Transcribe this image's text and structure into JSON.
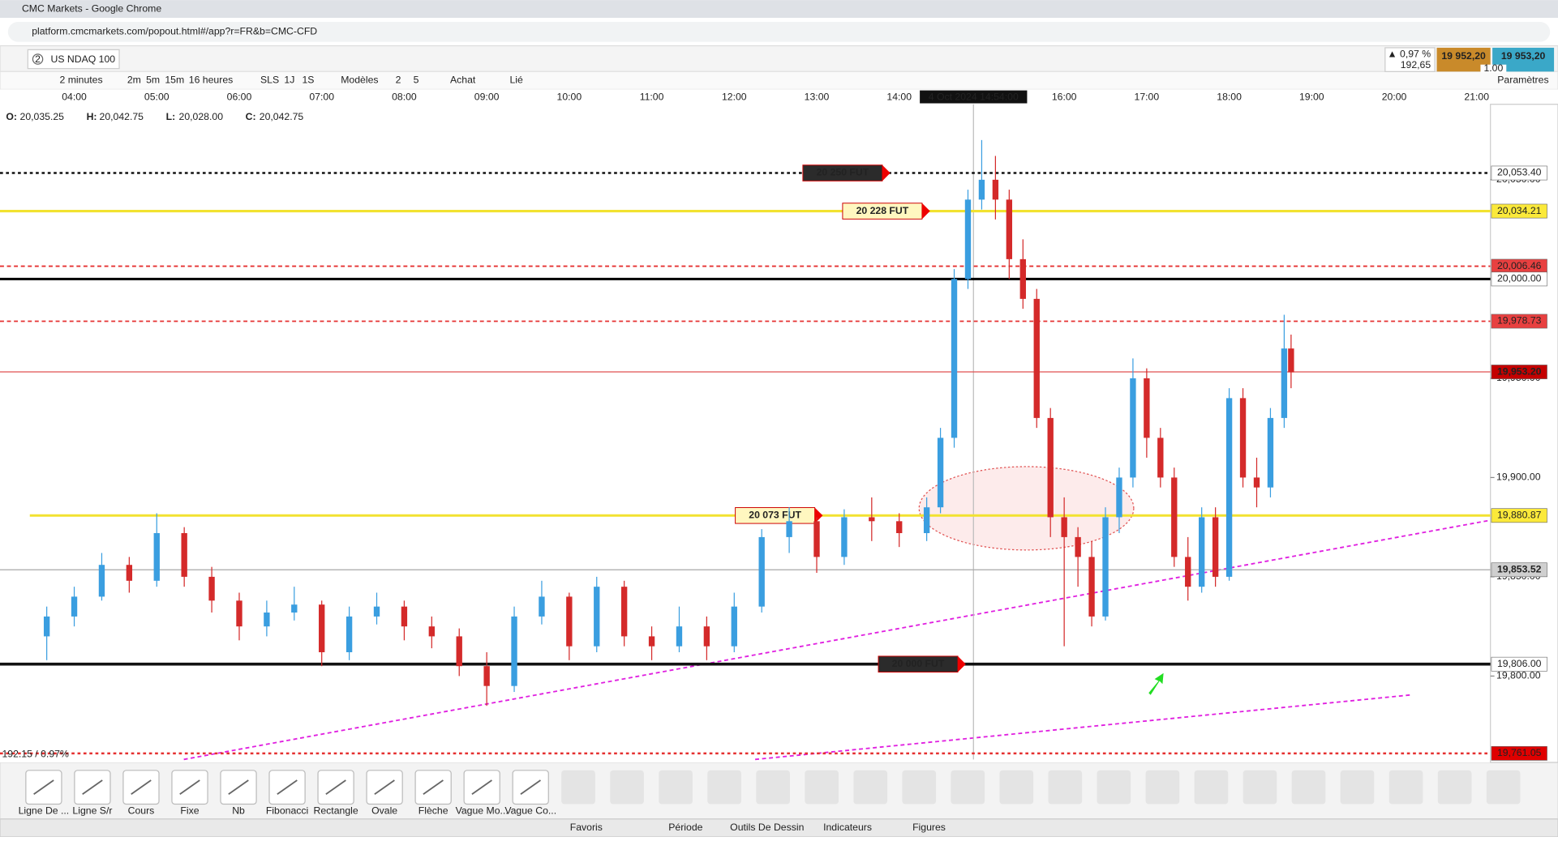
{
  "browser": {
    "title": "CMC Markets - Google Chrome",
    "url": "platform.cmcmarkets.com/popout.html#/app?r=FR&b=CMC-CFD"
  },
  "instrument": {
    "tab_number": "2",
    "tab": "US NDAQ 100",
    "change_pct": "▲ 0,97 %",
    "change": "192,65",
    "sell": "19 952,20",
    "buy": "19 953,20",
    "size": "1.00"
  },
  "toolbar": {
    "interval": "2 minutes",
    "quick_intervals": [
      "2m",
      "5m",
      "15m"
    ],
    "range": "16 heures",
    "views": [
      "SLS",
      "1J",
      "1S"
    ],
    "templates": "Modèles",
    "numbers": [
      "2",
      "5"
    ],
    "buy": "Achat",
    "link": "Lié",
    "settings": "Paramètres"
  },
  "ohlc": {
    "labels": [
      "O:",
      "H:",
      "L:",
      "C:"
    ],
    "values": [
      "20,035.25",
      "20,042.75",
      "20,028.00",
      "20,042.75"
    ]
  },
  "crosshair": {
    "label": "4 Oct 2024 14:54:00",
    "x": "14:54"
  },
  "chart_data": {
    "type": "candlestick",
    "x": [
      "03:40",
      "04:00",
      "04:20",
      "04:40",
      "05:00",
      "05:20",
      "05:40",
      "06:00",
      "06:20",
      "06:40",
      "07:00",
      "07:20",
      "07:40",
      "08:00",
      "08:20",
      "08:40",
      "09:00",
      "09:20",
      "09:40",
      "10:00",
      "10:20",
      "10:40",
      "11:00",
      "11:20",
      "11:40",
      "12:00",
      "12:20",
      "12:40",
      "13:00",
      "13:20",
      "13:40",
      "14:00",
      "14:20",
      "14:30",
      "14:40",
      "14:50",
      "15:00",
      "15:10",
      "15:20",
      "15:30",
      "15:40",
      "15:50",
      "16:00",
      "16:10",
      "16:20",
      "16:30",
      "16:40",
      "16:50",
      "17:00",
      "17:10",
      "17:20",
      "17:30",
      "17:40",
      "17:50",
      "18:00",
      "18:10",
      "18:20",
      "18:30",
      "18:40",
      "18:45"
    ],
    "open": [
      19820,
      19830,
      19840,
      19856,
      19848,
      19872,
      19850,
      19838,
      19825,
      19832,
      19836,
      19812,
      19830,
      19835,
      19825,
      19820,
      19805,
      19795,
      19830,
      19840,
      19815,
      19845,
      19820,
      19815,
      19825,
      19815,
      19835,
      19870,
      19878,
      19860,
      19880,
      19878,
      19872,
      19885,
      19920,
      20000,
      20040,
      20050,
      20040,
      20010,
      19990,
      19930,
      19880,
      19870,
      19860,
      19830,
      19880,
      19900,
      19950,
      19920,
      19900,
      19860,
      19845,
      19880,
      19850,
      19940,
      19900,
      19895,
      19930,
      19965
    ],
    "high": [
      19835,
      19845,
      19862,
      19860,
      19882,
      19875,
      19855,
      19842,
      19838,
      19845,
      19838,
      19835,
      19842,
      19838,
      19830,
      19824,
      19812,
      19835,
      19848,
      19842,
      19850,
      19848,
      19825,
      19835,
      19830,
      19842,
      19874,
      19885,
      19880,
      19884,
      19890,
      19882,
      19890,
      19925,
      20005,
      20045,
      20070,
      20062,
      20045,
      20020,
      19995,
      19935,
      19890,
      19875,
      19868,
      19885,
      19905,
      19960,
      19955,
      19925,
      19905,
      19870,
      19885,
      19885,
      19945,
      19945,
      19910,
      19935,
      19982,
      19972
    ],
    "low": [
      19808,
      19825,
      19838,
      19842,
      19845,
      19845,
      19832,
      19818,
      19820,
      19828,
      19805,
      19808,
      19826,
      19818,
      19814,
      19800,
      19785,
      19792,
      19826,
      19808,
      19812,
      19815,
      19808,
      19812,
      19808,
      19812,
      19832,
      19862,
      19852,
      19856,
      19868,
      19865,
      19868,
      19882,
      19915,
      19995,
      20035,
      20030,
      20000,
      19985,
      19925,
      19870,
      19815,
      19845,
      19825,
      19828,
      19872,
      19895,
      19910,
      19895,
      19855,
      19838,
      19842,
      19845,
      19848,
      19895,
      19885,
      19890,
      19925,
      19945
    ],
    "close": [
      19830,
      19840,
      19856,
      19848,
      19872,
      19850,
      19838,
      19825,
      19832,
      19836,
      19812,
      19830,
      19835,
      19825,
      19820,
      19805,
      19795,
      19830,
      19840,
      19815,
      19845,
      19820,
      19815,
      19825,
      19815,
      19835,
      19870,
      19878,
      19860,
      19880,
      19878,
      19872,
      19885,
      19920,
      20000,
      20040,
      20050,
      20040,
      20010,
      19990,
      19930,
      19880,
      19870,
      19860,
      19830,
      19880,
      19900,
      19950,
      19920,
      19900,
      19860,
      19845,
      19880,
      19850,
      19940,
      19900,
      19895,
      19930,
      19965,
      19953
    ],
    "up_color": "#3a9ee0",
    "down_color": "#d42a2a",
    "xlim": [
      "03:06",
      "21:10"
    ],
    "xticks": [
      "04:00",
      "05:00",
      "06:00",
      "07:00",
      "08:00",
      "09:00",
      "10:00",
      "11:00",
      "12:00",
      "13:00",
      "14:00",
      "16:00",
      "17:00",
      "18:00",
      "19:00",
      "20:00",
      "21:00"
    ],
    "ylim": [
      19758,
      20088
    ],
    "yticks": [
      {
        "value": 19800,
        "label": "19,800.00"
      },
      {
        "value": 19850,
        "label": "19,850.00"
      },
      {
        "value": 19900,
        "label": "19,900.00"
      },
      {
        "value": 19950,
        "label": "19,950.00"
      },
      {
        "value": 20050,
        "label": "20,050.00"
      }
    ],
    "levels": [
      {
        "value": 20053.4,
        "label": "20,053.40",
        "color": "#111111",
        "style": "dotted",
        "label_bg": "#ffffff",
        "label_color": "#000000",
        "tag": "20 250 FUT"
      },
      {
        "value": 20034.21,
        "label": "20,034.21",
        "color": "#f2e230",
        "style": "solid",
        "label_bg": "#fbe93a",
        "label_color": "#000000",
        "tag": "20 228 FUT"
      },
      {
        "value": 20006.46,
        "label": "20,006.46",
        "color": "#e53030",
        "style": "dashed",
        "label_bg": "#e84040",
        "label_color": "#ffffff"
      },
      {
        "value": 20000,
        "label": "20,000.00",
        "color": "#000000",
        "style": "solid",
        "label_bg": "#ffffff",
        "label_color": "#000000"
      },
      {
        "value": 19978.73,
        "label": "19,978.73",
        "color": "#e53030",
        "style": "dashed",
        "label_bg": "#e84040",
        "label_color": "#ffffff"
      },
      {
        "value": 19953.2,
        "label": "19,953.20",
        "color": "#e05050",
        "style": "thin",
        "label_bg": "#c40000",
        "label_color": "#ffffff"
      },
      {
        "value": 19880.87,
        "label": "19,880.87",
        "color": "#f2e230",
        "style": "solid",
        "label_bg": "#fbe93a",
        "label_color": "#000000",
        "tag": "20 073 FUT"
      },
      {
        "value": 19853.52,
        "label": "19,853.52",
        "color": "#a8a8a8",
        "style": "thin",
        "label_bg": "#cfcfcf",
        "label_color": "#000000"
      },
      {
        "value": 19806,
        "label": "19,806.00",
        "color": "#111111",
        "style": "thick",
        "label_bg": "#ffffff",
        "label_color": "#000000",
        "tag": "20 000 FUT"
      },
      {
        "value": 19761.05,
        "label": "19,761.05",
        "color": "#e53030",
        "style": "dotted",
        "label_bg": "#e00000",
        "label_color": "#ffffff"
      }
    ],
    "change_label": "192.15 / 0.97%"
  },
  "drawing_tools": [
    "Ligne De ...",
    "Ligne S/r",
    "Cours",
    "Fixe",
    "Nb",
    "Fibonacci",
    "Rectangle",
    "Ovale",
    "Flèche",
    "Vague Mo...",
    "Vague Co..."
  ],
  "bottom_tabs": [
    "Favoris",
    "Période",
    "Outils De Dessin",
    "Indicateurs",
    "Figures"
  ]
}
